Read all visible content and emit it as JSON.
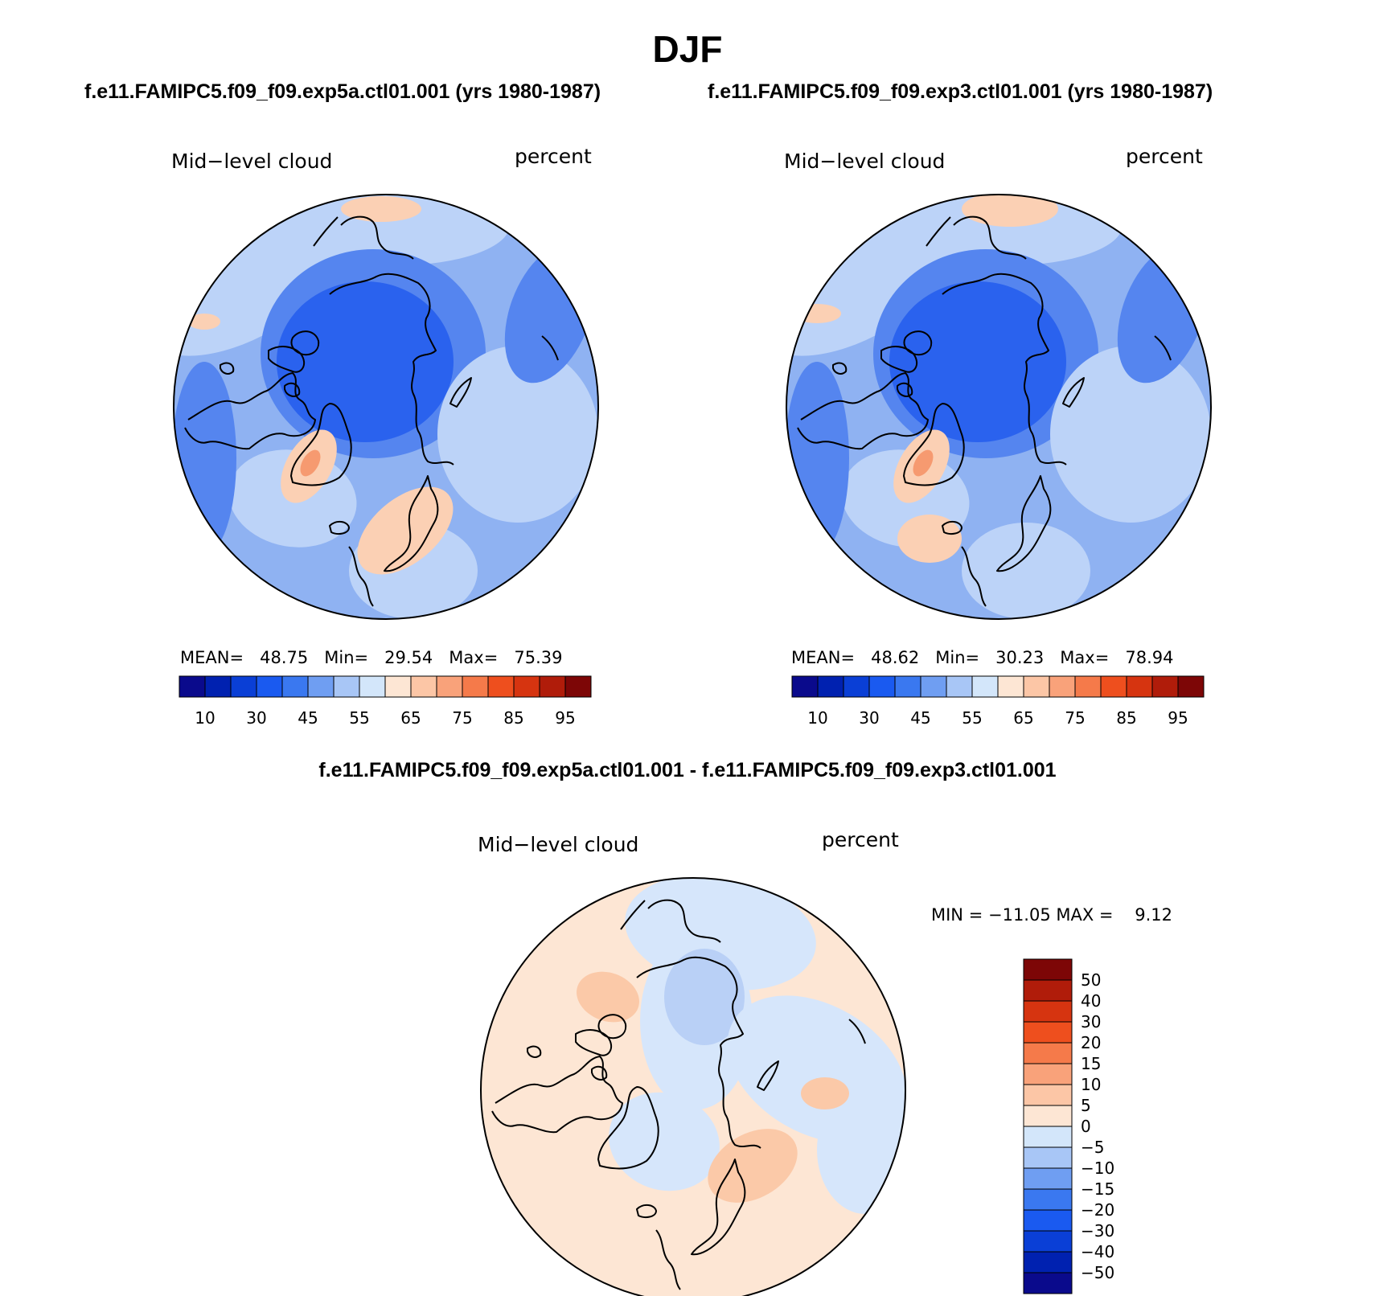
{
  "season": "DJF",
  "panels": {
    "left": {
      "case_title": "f.e11.FAMIPC5.f09_f09.exp5a.ctl01.001 (yrs 1980-1987)",
      "variable": "Mid−level cloud",
      "units": "percent",
      "stats": {
        "mean_label": "MEAN=",
        "mean": "48.75",
        "min_label": "Min=",
        "min": "29.54",
        "max_label": "Max=",
        "max": "75.39"
      }
    },
    "right": {
      "case_title": "f.e11.FAMIPC5.f09_f09.exp3.ctl01.001 (yrs 1980-1987)",
      "variable": "Mid−level cloud",
      "units": "percent",
      "stats": {
        "mean_label": "MEAN=",
        "mean": "48.62",
        "min_label": "Min=",
        "min": "30.23",
        "max_label": "Max=",
        "max": "78.94"
      }
    },
    "diff": {
      "case_title": "f.e11.FAMIPC5.f09_f09.exp5a.ctl01.001 - f.e11.FAMIPC5.f09_f09.exp3.ctl01.001",
      "variable": "Mid−level cloud",
      "units": "percent",
      "stats": {
        "min_label": "MIN =",
        "min": "−11.05",
        "max_label": "MAX =",
        "max": "9.12"
      }
    }
  },
  "colorbars": {
    "abs": {
      "colors": [
        "#0a0a8c",
        "#0021b0",
        "#0a3fd6",
        "#1a5af0",
        "#3a78f0",
        "#6f9ef2",
        "#a8c6f6",
        "#d3e6fa",
        "#fde6d4",
        "#fcc6a6",
        "#f9a27a",
        "#f57a4a",
        "#ee4f1e",
        "#d63410",
        "#b01c0a",
        "#7d0606"
      ],
      "tick_labels": [
        "10",
        "30",
        "45",
        "55",
        "65",
        "75",
        "85",
        "95"
      ]
    },
    "diff": {
      "colors": [
        "#0a0a8c",
        "#0021b0",
        "#0a3fd6",
        "#1a5af0",
        "#3a78f0",
        "#6f9ef2",
        "#a8c6f6",
        "#d3e6fa",
        "#fde6d4",
        "#fcc6a6",
        "#f9a27a",
        "#f57a4a",
        "#ee4f1e",
        "#d63410",
        "#b01c0a",
        "#7d0606"
      ],
      "tick_labels": [
        "−50",
        "−40",
        "−30",
        "−20",
        "−15",
        "−10",
        "−5",
        "0",
        "5",
        "10",
        "15",
        "20",
        "30",
        "40",
        "50"
      ]
    }
  },
  "map_colors": {
    "coast": "#000000",
    "abs_base": "#8fb2f2",
    "abs_blue_deep": "#2a62ee",
    "abs_blue_mid": "#5585ef",
    "abs_light": "#bcd3f8",
    "abs_warm": "#fbd0b4",
    "abs_warm_hot": "#f69a70",
    "diff_base": "#fde6d4",
    "diff_cool": "#d6e6fb",
    "diff_cool2": "#b9d0f6",
    "diff_warm2": "#fbc9a8"
  }
}
